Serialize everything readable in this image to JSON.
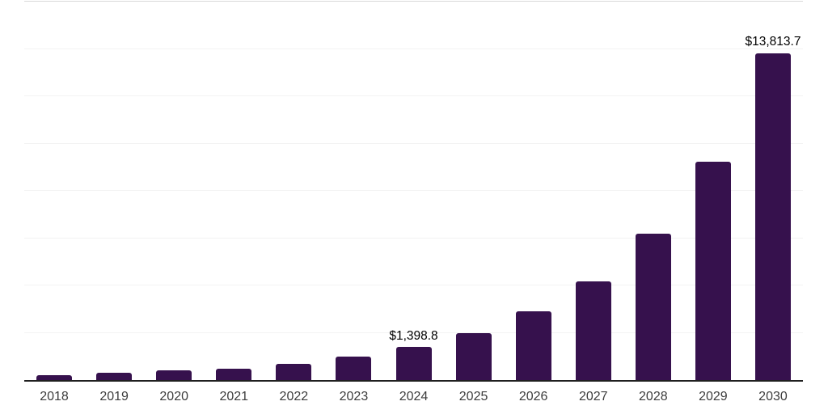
{
  "chart_data": {
    "type": "bar",
    "title": "",
    "xlabel": "",
    "ylabel": "",
    "categories": [
      "2018",
      "2019",
      "2020",
      "2021",
      "2022",
      "2023",
      "2024",
      "2025",
      "2026",
      "2027",
      "2028",
      "2029",
      "2030"
    ],
    "values": [
      218,
      304,
      398,
      478,
      700,
      986,
      1398.8,
      1968,
      2900,
      4182,
      6180,
      9240,
      13813.7
    ],
    "data_labels": [
      {
        "category": "2024",
        "text": "$1,398.8"
      },
      {
        "category": "2030",
        "text": "$13,813.7"
      }
    ],
    "ylim": [
      0,
      16000
    ],
    "gridline_step": 2000,
    "grid": "horizontal",
    "y_axis_tick_labels": "none",
    "legend_position": "none",
    "colors": {
      "bar": "#36114d",
      "axis_line": "#1f1f1f",
      "gridline": "#f3f3f3",
      "top_border": "#d9d9d9",
      "tick_label": "#3c3c3c",
      "data_label": "#000000",
      "background": "#ffffff"
    }
  }
}
